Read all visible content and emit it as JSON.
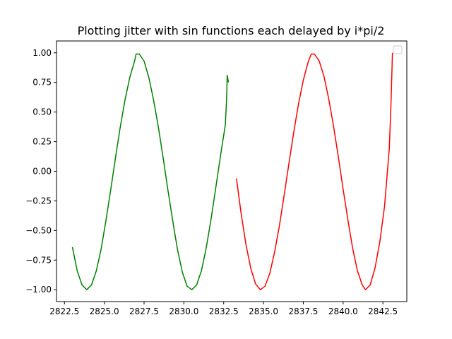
{
  "chart_data": {
    "type": "line",
    "title": "Plotting jitter with sin functions each delayed by i*pi/2",
    "xlabel": "",
    "ylabel": "",
    "xlim": [
      2822.0,
      2844.0
    ],
    "ylim": [
      -1.1,
      1.1
    ],
    "x_ticks": [
      2822.5,
      2825.0,
      2827.5,
      2830.0,
      2832.5,
      2835.0,
      2837.5,
      2840.0,
      2842.5
    ],
    "x_tick_labels": [
      "2822.5",
      "2825.0",
      "2827.5",
      "2830.0",
      "2832.5",
      "2835.0",
      "2837.5",
      "2840.0",
      "2842.5"
    ],
    "y_ticks": [
      -1.0,
      -0.75,
      -0.5,
      -0.25,
      0.0,
      0.25,
      0.5,
      0.75,
      1.0
    ],
    "y_tick_labels": [
      "−1.00",
      "−0.75",
      "−0.50",
      "−0.25",
      "0.00",
      "0.25",
      "0.50",
      "0.75",
      "1.00"
    ],
    "grid": false,
    "legend": {
      "placement": "top-right",
      "entries": []
    },
    "series": [
      {
        "color": "#008000",
        "points": [
          [
            2823.0,
            -0.64
          ],
          [
            2823.3,
            -0.84
          ],
          [
            2823.6,
            -0.96
          ],
          [
            2823.9,
            -1.0
          ],
          [
            2824.2,
            -0.96
          ],
          [
            2824.5,
            -0.84
          ],
          [
            2824.8,
            -0.66
          ],
          [
            2825.1,
            -0.42
          ],
          [
            2825.4,
            -0.16
          ],
          [
            2825.7,
            0.11
          ],
          [
            2826.0,
            0.37
          ],
          [
            2826.3,
            0.6
          ],
          [
            2826.6,
            0.79
          ],
          [
            2826.9,
            0.93
          ],
          [
            2827.0,
            0.99
          ],
          [
            2827.2,
            0.99
          ],
          [
            2827.5,
            0.93
          ],
          [
            2827.8,
            0.79
          ],
          [
            2828.1,
            0.6
          ],
          [
            2828.4,
            0.37
          ],
          [
            2828.7,
            0.11
          ],
          [
            2829.0,
            -0.16
          ],
          [
            2829.3,
            -0.42
          ],
          [
            2829.6,
            -0.66
          ],
          [
            2829.9,
            -0.85
          ],
          [
            2830.2,
            -0.97
          ],
          [
            2830.5,
            -1.0
          ],
          [
            2830.8,
            -0.96
          ],
          [
            2831.1,
            -0.84
          ],
          [
            2831.4,
            -0.65
          ],
          [
            2831.7,
            -0.41
          ],
          [
            2832.0,
            -0.14
          ],
          [
            2832.3,
            0.13
          ],
          [
            2832.6,
            0.39
          ],
          [
            2832.68,
            0.6
          ],
          [
            2832.72,
            0.81
          ],
          [
            2832.8,
            0.75
          ]
        ]
      },
      {
        "color": "#ff0000",
        "points": [
          [
            2833.3,
            -0.06
          ],
          [
            2833.6,
            -0.36
          ],
          [
            2833.9,
            -0.62
          ],
          [
            2834.2,
            -0.82
          ],
          [
            2834.5,
            -0.95
          ],
          [
            2834.8,
            -1.0
          ],
          [
            2835.1,
            -0.97
          ],
          [
            2835.4,
            -0.86
          ],
          [
            2835.7,
            -0.68
          ],
          [
            2836.0,
            -0.46
          ],
          [
            2836.3,
            -0.2
          ],
          [
            2836.6,
            0.07
          ],
          [
            2836.9,
            0.33
          ],
          [
            2837.2,
            0.57
          ],
          [
            2837.5,
            0.77
          ],
          [
            2837.8,
            0.92
          ],
          [
            2838.0,
            0.99
          ],
          [
            2838.2,
            0.99
          ],
          [
            2838.5,
            0.93
          ],
          [
            2838.8,
            0.8
          ],
          [
            2839.1,
            0.61
          ],
          [
            2839.4,
            0.38
          ],
          [
            2839.7,
            0.12
          ],
          [
            2840.0,
            -0.15
          ],
          [
            2840.3,
            -0.41
          ],
          [
            2840.6,
            -0.65
          ],
          [
            2840.9,
            -0.84
          ],
          [
            2841.2,
            -0.96
          ],
          [
            2841.4,
            -1.0
          ],
          [
            2841.7,
            -0.96
          ],
          [
            2842.0,
            -0.82
          ],
          [
            2842.3,
            -0.6
          ],
          [
            2842.6,
            -0.3
          ],
          [
            2842.9,
            0.19
          ],
          [
            2843.0,
            0.55
          ],
          [
            2843.1,
            1.0
          ]
        ]
      }
    ]
  }
}
